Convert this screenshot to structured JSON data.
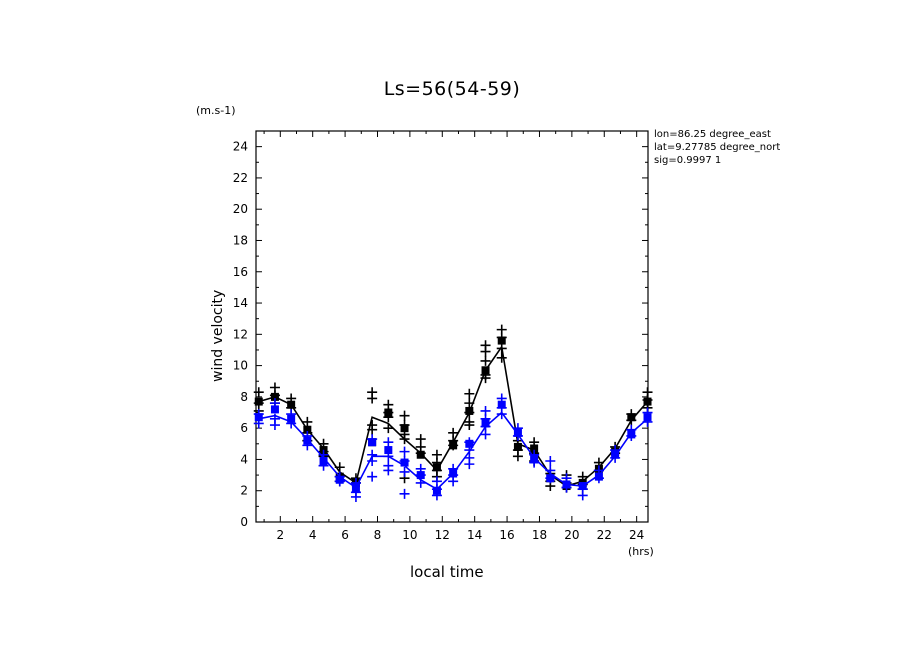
{
  "chart_data": {
    "type": "line",
    "title": "Ls=56(54-59)",
    "xlabel": "local time",
    "ylabel": "wind velocity",
    "x_unit": "(hrs)",
    "y_unit": "(m.s-1)",
    "xlim": [
      0.5,
      24.7
    ],
    "ylim": [
      0,
      25
    ],
    "xticks": [
      2,
      4,
      6,
      8,
      10,
      12,
      14,
      16,
      18,
      20,
      22,
      24
    ],
    "yticks": [
      0,
      2,
      4,
      6,
      8,
      10,
      12,
      14,
      16,
      18,
      20,
      22,
      24
    ],
    "grid": false,
    "annotations": [
      "lon=86.25 degree_east",
      "lat=9.27785 degree_north",
      "sig=0.9997 1"
    ],
    "series": [
      {
        "color": "#000000",
        "marker": "square",
        "x": [
          0.67,
          1.67,
          2.67,
          3.67,
          4.67,
          5.67,
          6.67,
          7.67,
          8.67,
          9.67,
          10.67,
          11.67,
          12.67,
          13.67,
          14.67,
          15.67,
          16.67,
          17.67,
          18.67,
          19.67,
          20.67,
          21.67,
          22.67,
          23.67,
          24.67
        ],
        "line": [
          7.7,
          8.0,
          7.5,
          5.9,
          4.7,
          3.2,
          2.5,
          6.7,
          6.3,
          5.3,
          4.4,
          3.3,
          5.1,
          7.0,
          9.7,
          11.2,
          5.0,
          4.6,
          3.0,
          2.3,
          2.6,
          3.5,
          4.7,
          6.5,
          7.7
        ],
        "values": [
          7.7,
          8.0,
          7.5,
          5.9,
          4.6,
          2.9,
          2.5,
          5.1,
          7.0,
          6.0,
          4.3,
          3.5,
          4.9,
          7.1,
          9.7,
          11.6,
          4.8,
          4.7,
          2.8,
          2.3,
          2.5,
          3.4,
          4.5,
          6.7,
          7.7
        ],
        "spread": [
          [
            8.3,
            7.6,
            7.1
          ],
          [
            8.6,
            8.1,
            7.6
          ],
          [
            7.9,
            7.3
          ],
          [
            6.4,
            5.7,
            5.2
          ],
          [
            5.0,
            4.5,
            4.2
          ],
          [
            3.5,
            2.9,
            2.6
          ],
          [
            2.8,
            2.5
          ],
          [
            8.3,
            7.9,
            6.2,
            5.9
          ],
          [
            7.5,
            7.0,
            6.7,
            6.0
          ],
          [
            6.8,
            6.2,
            5.6,
            5.3,
            2.8
          ],
          [
            5.3,
            4.8,
            4.4
          ],
          [
            4.3,
            3.8,
            3.3,
            2.9
          ],
          [
            5.7,
            5.2,
            4.9
          ],
          [
            8.2,
            7.6,
            7.0,
            6.4,
            6.2
          ],
          [
            11.3,
            10.9,
            10.3,
            9.4,
            9.2
          ],
          [
            12.3,
            11.8,
            11.1,
            10.5
          ],
          [
            5.2,
            4.6,
            4.2
          ],
          [
            5.1,
            4.4,
            3.9
          ],
          [
            3.1,
            2.6,
            2.3
          ],
          [
            3.0,
            2.5,
            2.2
          ],
          [
            2.9,
            2.4,
            2.1
          ],
          [
            3.8,
            3.3
          ],
          [
            4.8,
            4.4
          ],
          [
            6.9,
            6.5
          ],
          [
            8.3,
            7.8,
            7.3
          ]
        ]
      },
      {
        "color": "#0000ff",
        "marker": "square",
        "x": [
          0.67,
          1.67,
          2.67,
          3.67,
          4.67,
          5.67,
          6.67,
          7.67,
          8.67,
          9.67,
          10.67,
          11.67,
          12.67,
          13.67,
          14.67,
          15.67,
          16.67,
          17.67,
          18.67,
          19.67,
          20.67,
          21.67,
          22.67,
          23.67,
          24.67
        ],
        "line": [
          6.6,
          6.8,
          6.4,
          5.3,
          4.1,
          2.9,
          2.2,
          4.2,
          4.2,
          3.6,
          2.7,
          2.1,
          3.1,
          4.5,
          6.1,
          7.0,
          5.6,
          4.1,
          3.1,
          2.4,
          2.3,
          3.0,
          4.2,
          5.7,
          6.6
        ],
        "values": [
          6.7,
          7.2,
          6.6,
          5.2,
          3.9,
          2.7,
          2.2,
          5.1,
          4.6,
          3.8,
          3.0,
          2.0,
          3.1,
          5.0,
          6.3,
          7.5,
          5.7,
          4.0,
          2.8,
          2.4,
          2.3,
          2.9,
          4.3,
          5.6,
          6.7
        ],
        "spread": [
          [
            6.9,
            6.3
          ],
          [
            7.6,
            6.6,
            6.2
          ],
          [
            6.9,
            6.3
          ],
          [
            5.5,
            4.9
          ],
          [
            4.3,
            3.6
          ],
          [
            2.9,
            2.6
          ],
          [
            2.5,
            1.9,
            1.6
          ],
          [
            5.3,
            4.3,
            3.9,
            2.9
          ],
          [
            5.1,
            4.2,
            3.6,
            3.3
          ],
          [
            4.5,
            3.9,
            3.2,
            1.8
          ],
          [
            3.4,
            3.0,
            2.5
          ],
          [
            2.6,
            2.1,
            1.7
          ],
          [
            3.4,
            3.0,
            2.6
          ],
          [
            5.1,
            4.6,
            4.1,
            3.7
          ],
          [
            7.1,
            6.6,
            6.1,
            5.6
          ],
          [
            7.9,
            7.3,
            6.9
          ],
          [
            6.0,
            5.5
          ],
          [
            4.3,
            3.8
          ],
          [
            3.9,
            3.3,
            2.8
          ],
          [
            2.8,
            2.2
          ],
          [
            2.1,
            1.7
          ],
          [
            3.3,
            2.8
          ],
          [
            4.6,
            4.1
          ],
          [
            5.9,
            5.5
          ],
          [
            7.0,
            6.4
          ]
        ]
      }
    ]
  }
}
